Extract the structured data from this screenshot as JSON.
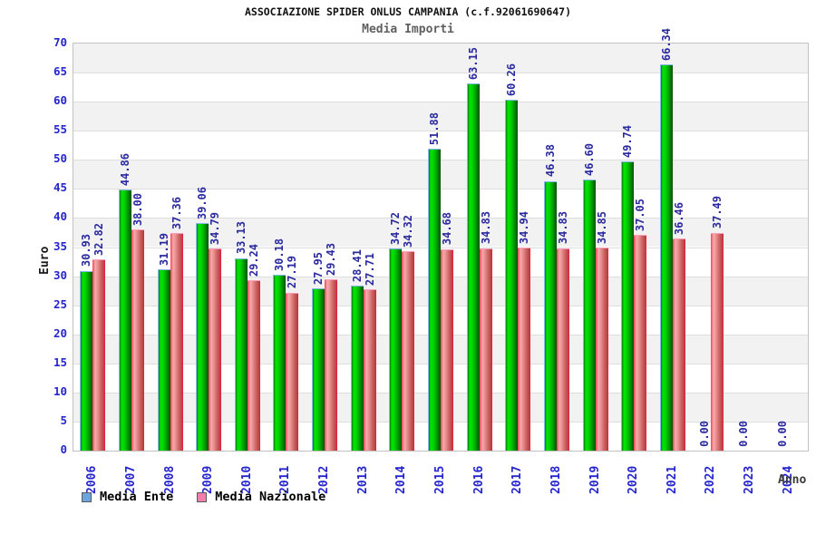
{
  "header": {
    "title": "ASSOCIAZIONE SPIDER ONLUS CAMPANIA (c.f.92061690647)",
    "subtitle": "Media Importi"
  },
  "chart_data": {
    "type": "bar",
    "title": "ASSOCIAZIONE SPIDER ONLUS CAMPANIA (c.f.92061690647)",
    "subtitle": "Media Importi",
    "xlabel": "Anno",
    "ylabel": "Euro",
    "ylim": [
      0,
      70
    ],
    "ytick_step": 5,
    "grid": "horizontal alternating bands",
    "legend_position": "bottom-left",
    "categories": [
      "2006",
      "2007",
      "2008",
      "2009",
      "2010",
      "2011",
      "2012",
      "2013",
      "2014",
      "2015",
      "2016",
      "2017",
      "2018",
      "2019",
      "2020",
      "2021",
      "2022",
      "2023",
      "2024"
    ],
    "series": [
      {
        "name": "Media Ente",
        "bar_color": "#00CC00",
        "legend_color": "#6CA5DE",
        "values": [
          30.93,
          44.86,
          31.19,
          39.06,
          33.13,
          30.18,
          27.95,
          28.41,
          34.72,
          51.88,
          63.15,
          60.26,
          46.38,
          46.6,
          49.74,
          66.34,
          0.0,
          0.0,
          0.0
        ]
      },
      {
        "name": "Media Nazionale",
        "bar_color": "#E87070",
        "legend_color": "#F07FAE",
        "values": [
          32.82,
          38.0,
          37.36,
          34.79,
          29.24,
          27.19,
          29.43,
          27.71,
          34.32,
          34.68,
          34.83,
          34.94,
          34.83,
          34.85,
          37.05,
          36.46,
          37.49,
          null,
          null
        ]
      }
    ]
  },
  "colors": {
    "axis_tick_label": "#2525CD",
    "value_label": "#2A2A9E",
    "band_gray": "#F2F2F2",
    "gridline": "#DEDEDE",
    "subtitle_gray": "#606060"
  }
}
